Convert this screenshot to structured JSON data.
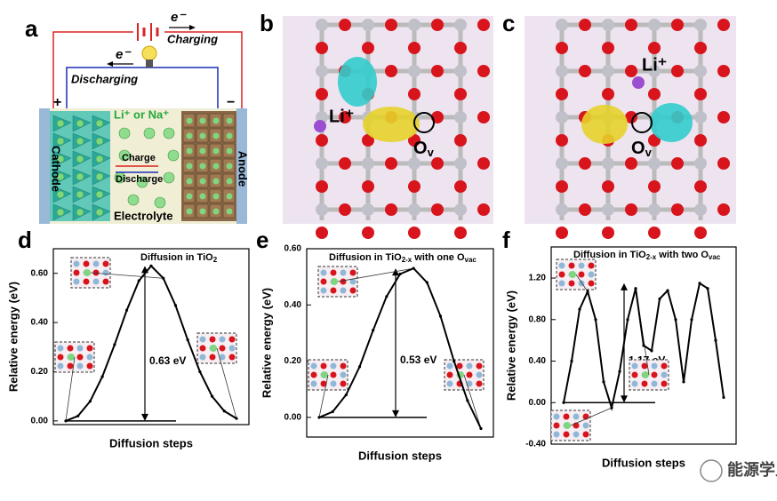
{
  "panel_labels": [
    "a",
    "b",
    "c",
    "d",
    "e",
    "f"
  ],
  "battery": {
    "electron_top": "e⁻",
    "charging": "Charging",
    "electron_mid": "e⁻",
    "discharging": "Discharging",
    "plus": "+",
    "minus": "−",
    "ions": "Li⁺ or Na⁺",
    "charge": "Charge",
    "discharge": "Discharge",
    "cathode": "Cathode",
    "anode": "Anode",
    "electrolyte": "Electrolyte"
  },
  "structure_b": {
    "li": "Li⁺",
    "ov": {
      "main": "O",
      "sub": "v"
    }
  },
  "structure_c": {
    "li": "Li⁺",
    "ov": {
      "main": "O",
      "sub": "v"
    }
  },
  "watermark": "能源学人",
  "chart_data": [
    {
      "type": "line",
      "title": [
        "Diffusion in TiO",
        "2"
      ],
      "ylabel": "Relative energy (eV)",
      "xlabel": "Diffusion steps",
      "x": [
        0,
        1,
        2,
        3,
        4,
        5,
        6,
        7,
        8,
        9,
        10,
        11,
        12,
        13,
        14
      ],
      "xlim": [
        0,
        14
      ],
      "values": [
        0,
        0.02,
        0.08,
        0.18,
        0.31,
        0.45,
        0.57,
        0.63,
        0.58,
        0.47,
        0.33,
        0.2,
        0.1,
        0.04,
        0.01
      ],
      "color": "#000000",
      "ylim": [
        -0.015,
        0.7
      ],
      "yticks": [
        {
          "value": 0,
          "label": "0.00"
        },
        {
          "value": 0.2,
          "label": "0.20"
        },
        {
          "value": 0.4,
          "label": "0.40"
        },
        {
          "value": 0.6,
          "label": "0.60"
        }
      ],
      "annotation": "0.63 eV"
    },
    {
      "type": "line",
      "title": [
        "Diffusion in TiO",
        "2-x",
        " with one O",
        "vac"
      ],
      "ylabel": "Relative energy (eV)",
      "xlabel": "Diffusion steps",
      "x": [
        0,
        1,
        2,
        3,
        4,
        5,
        6,
        7,
        8,
        9,
        10,
        11,
        12
      ],
      "xlim": [
        0,
        12
      ],
      "values": [
        0,
        0.02,
        0.08,
        0.18,
        0.31,
        0.43,
        0.51,
        0.53,
        0.48,
        0.36,
        0.2,
        0.06,
        -0.04
      ],
      "color": "#000000",
      "ylim": [
        -0.07,
        0.6
      ],
      "yticks": [
        {
          "value": 0,
          "label": "0.00"
        },
        {
          "value": 0.2,
          "label": "0.20"
        },
        {
          "value": 0.4,
          "label": "0.40"
        },
        {
          "value": 0.6,
          "label": "0.60"
        }
      ],
      "annotation": "0.53 eV"
    },
    {
      "type": "line",
      "title": [
        "Diffusion in TiO",
        "2-x",
        " with two O",
        "vac"
      ],
      "ylabel": "Relative energy (eV)",
      "xlabel": "Diffusion steps",
      "x": [
        0,
        1,
        2,
        3,
        4,
        5,
        6,
        7,
        8,
        9,
        10,
        11,
        12,
        13,
        14,
        15,
        16,
        17,
        18,
        19,
        20
      ],
      "xlim": [
        0,
        20
      ],
      "values": [
        0,
        0.4,
        0.9,
        1.07,
        0.8,
        0.2,
        -0.05,
        0.3,
        0.8,
        1.1,
        0.55,
        0.5,
        1.0,
        1.08,
        0.8,
        0.2,
        0.8,
        1.15,
        1.1,
        0.6,
        0.05
      ],
      "color": "#000000",
      "ylim": [
        -0.4,
        1.5
      ],
      "yticks": [
        {
          "value": -0.4,
          "label": "-0.40"
        },
        {
          "value": 0,
          "label": "0.00"
        },
        {
          "value": 0.4,
          "label": "0.40"
        },
        {
          "value": 0.8,
          "label": "0.80"
        },
        {
          "value": 1.2,
          "label": "1.20"
        }
      ],
      "annotation": "1.17 eV"
    }
  ]
}
